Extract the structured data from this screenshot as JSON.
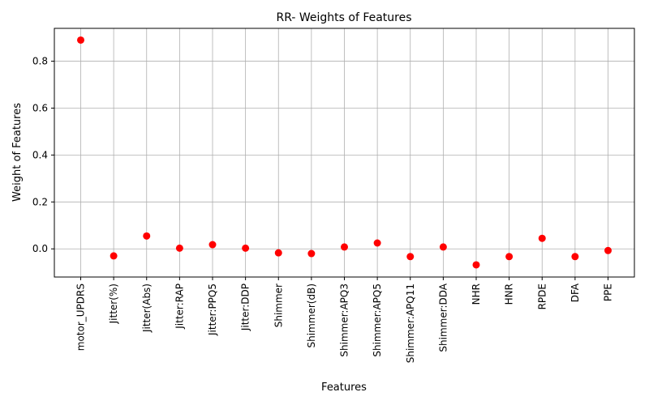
{
  "chart_data": {
    "type": "scatter",
    "title": "RR- Weights of Features",
    "xlabel": "Features",
    "ylabel": "Weight of Features",
    "categories": [
      "motor_UPDRS",
      "Jitter(%)",
      "Jitter(Abs)",
      "Jitter:RAP",
      "Jitter:PPQ5",
      "Jitter:DDP",
      "Shimmer",
      "Shimmer(dB)",
      "Shimmer:APQ3",
      "Shimmer:APQ5",
      "Shimmer:APQ11",
      "Shimmer:DDA",
      "NHR",
      "HNR",
      "RPDE",
      "DFA",
      "PPE"
    ],
    "values": [
      0.89,
      -0.03,
      0.055,
      0.003,
      0.018,
      0.003,
      -0.017,
      -0.02,
      0.008,
      0.025,
      -0.033,
      0.008,
      -0.068,
      -0.033,
      0.045,
      -0.033,
      -0.007
    ],
    "ylim": [
      -0.12,
      0.94
    ],
    "yticks": [
      "0.0",
      "0.2",
      "0.4",
      "0.6",
      "0.8"
    ],
    "grid": true,
    "marker_color": "#ff0000"
  }
}
